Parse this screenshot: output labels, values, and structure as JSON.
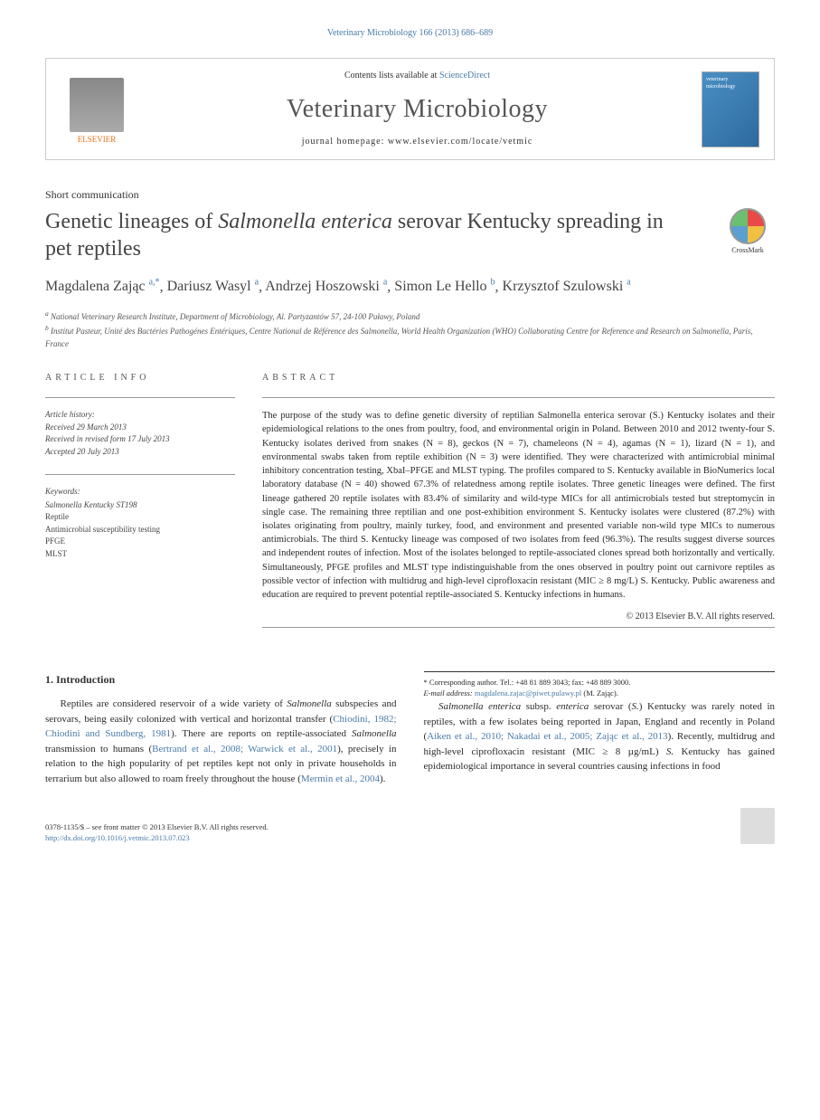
{
  "journal_ref": "Veterinary Microbiology 166 (2013) 686–689",
  "header": {
    "contents_prefix": "Contents lists available at ",
    "contents_link": "ScienceDirect",
    "journal_name": "Veterinary Microbiology",
    "homepage_label": "journal homepage: ",
    "homepage_url": "www.elsevier.com/locate/vetmic",
    "elsevier_label": "ELSEVIER",
    "cover_text": "veterinary microbiology"
  },
  "article_type": "Short communication",
  "title_pre": "Genetic lineages of ",
  "title_italic": "Salmonella enterica",
  "title_post": " serovar Kentucky spreading in pet reptiles",
  "crossmark_label": "CrossMark",
  "authors": [
    {
      "name": "Magdalena Zając",
      "aff": "a,*"
    },
    {
      "name": "Dariusz Wasyl",
      "aff": "a"
    },
    {
      "name": "Andrzej Hoszowski",
      "aff": "a"
    },
    {
      "name": "Simon Le Hello",
      "aff": "b"
    },
    {
      "name": "Krzysztof Szulowski",
      "aff": "a"
    }
  ],
  "affiliations": {
    "a": "National Veterinary Research Institute, Department of Microbiology, Al. Partyzantów 57, 24-100 Puławy, Poland",
    "b": "Institut Pasteur, Unité des Bactéries Pathogénes Entériques, Centre National de Référence des Salmonella, World Health Organization (WHO) Collaborating Centre for Reference and Research on Salmonella, Paris, France"
  },
  "info_label": "ARTICLE INFO",
  "abstract_label": "ABSTRACT",
  "history_label": "Article history:",
  "history": {
    "received": "Received 29 March 2013",
    "revised": "Received in revised form 17 July 2013",
    "accepted": "Accepted 20 July 2013"
  },
  "keywords_label": "Keywords:",
  "keywords": [
    "Salmonella Kentucky ST198",
    "Reptile",
    "Antimicrobial susceptibility testing",
    "PFGE",
    "MLST"
  ],
  "abstract": "The purpose of the study was to define genetic diversity of reptilian Salmonella enterica serovar (S.) Kentucky isolates and their epidemiological relations to the ones from poultry, food, and environmental origin in Poland. Between 2010 and 2012 twenty-four S. Kentucky isolates derived from snakes (N = 8), geckos (N = 7), chameleons (N = 4), agamas (N = 1), lizard (N = 1), and environmental swabs taken from reptile exhibition (N = 3) were identified. They were characterized with antimicrobial minimal inhibitory concentration testing, XbaI–PFGE and MLST typing. The profiles compared to S. Kentucky available in BioNumerics local laboratory database (N = 40) showed 67.3% of relatedness among reptile isolates. Three genetic lineages were defined. The first lineage gathered 20 reptile isolates with 83.4% of similarity and wild-type MICs for all antimicrobials tested but streptomycin in single case. The remaining three reptilian and one post-exhibition environment S. Kentucky isolates were clustered (87.2%) with isolates originating from poultry, mainly turkey, food, and environment and presented variable non-wild type MICs to numerous antimicrobials. The third S. Kentucky lineage was composed of two isolates from feed (96.3%). The results suggest diverse sources and independent routes of infection. Most of the isolates belonged to reptile-associated clones spread both horizontally and vertically. Simultaneously, PFGE profiles and MLST type indistinguishable from the ones observed in poultry point out carnivore reptiles as possible vector of infection with multidrug and high-level ciprofloxacin resistant (MIC ≥ 8 mg/L) S. Kentucky. Public awareness and education are required to prevent potential reptile-associated S. Kentucky infections in humans.",
  "copyright": "© 2013 Elsevier B.V. All rights reserved.",
  "intro_heading": "1. Introduction",
  "intro_p1_pre": "Reptiles are considered reservoir of a wide variety of ",
  "intro_p1_it1": "Salmonella",
  "intro_p1_mid": " subspecies and serovars, being easily colonized with vertical and horizontal transfer (",
  "intro_p1_cite1": "Chiodini, 1982; Chiodini and Sundberg, 1981",
  "intro_p1_mid2": "). There are reports on reptile-associated ",
  "intro_p1_it2": "Salmonella",
  "intro_p1_mid3": " transmission to humans (",
  "intro_p1_cite2": "Bertrand et al., 2008; Warwick et al., 2001",
  "intro_p1_mid4": "), precisely in relation to the high popularity of pet reptiles kept not only in private households in terrarium but also allowed to roam freely throughout the house (",
  "intro_p1_cite3": "Mermin et al., 2004",
  "intro_p1_end": ").",
  "intro_p2_it1": "Salmonella enterica",
  "intro_p2_mid1": " subsp. ",
  "intro_p2_it2": "enterica",
  "intro_p2_mid2": " serovar (",
  "intro_p2_it3": "S.",
  "intro_p2_mid3": ") Kentucky was rarely noted in reptiles, with a few isolates being reported in Japan, England and recently in Poland (",
  "intro_p2_cite1": "Aiken et al., 2010; Nakadai et al., 2005; Zając et al., 2013",
  "intro_p2_mid4": "). Recently, multidrug and high-level ciprofloxacin resistant (MIC ≥ 8 µg/mL) ",
  "intro_p2_it4": "S.",
  "intro_p2_mid5": " Kentucky has gained epidemiological importance in several countries causing infections in food",
  "corr_label": "* Corresponding author. Tel.: +48 81 889 3043; fax: +48 889 3000.",
  "email_label": "E-mail address:",
  "email": "magdalena.zajac@piwet.pulawy.pl",
  "email_name": "(M. Zając).",
  "footer_issn": "0378-1135/$ – see front matter © 2013 Elsevier B.V. All rights reserved.",
  "footer_doi": "http://dx.doi.org/10.1016/j.vetmic.2013.07.023"
}
